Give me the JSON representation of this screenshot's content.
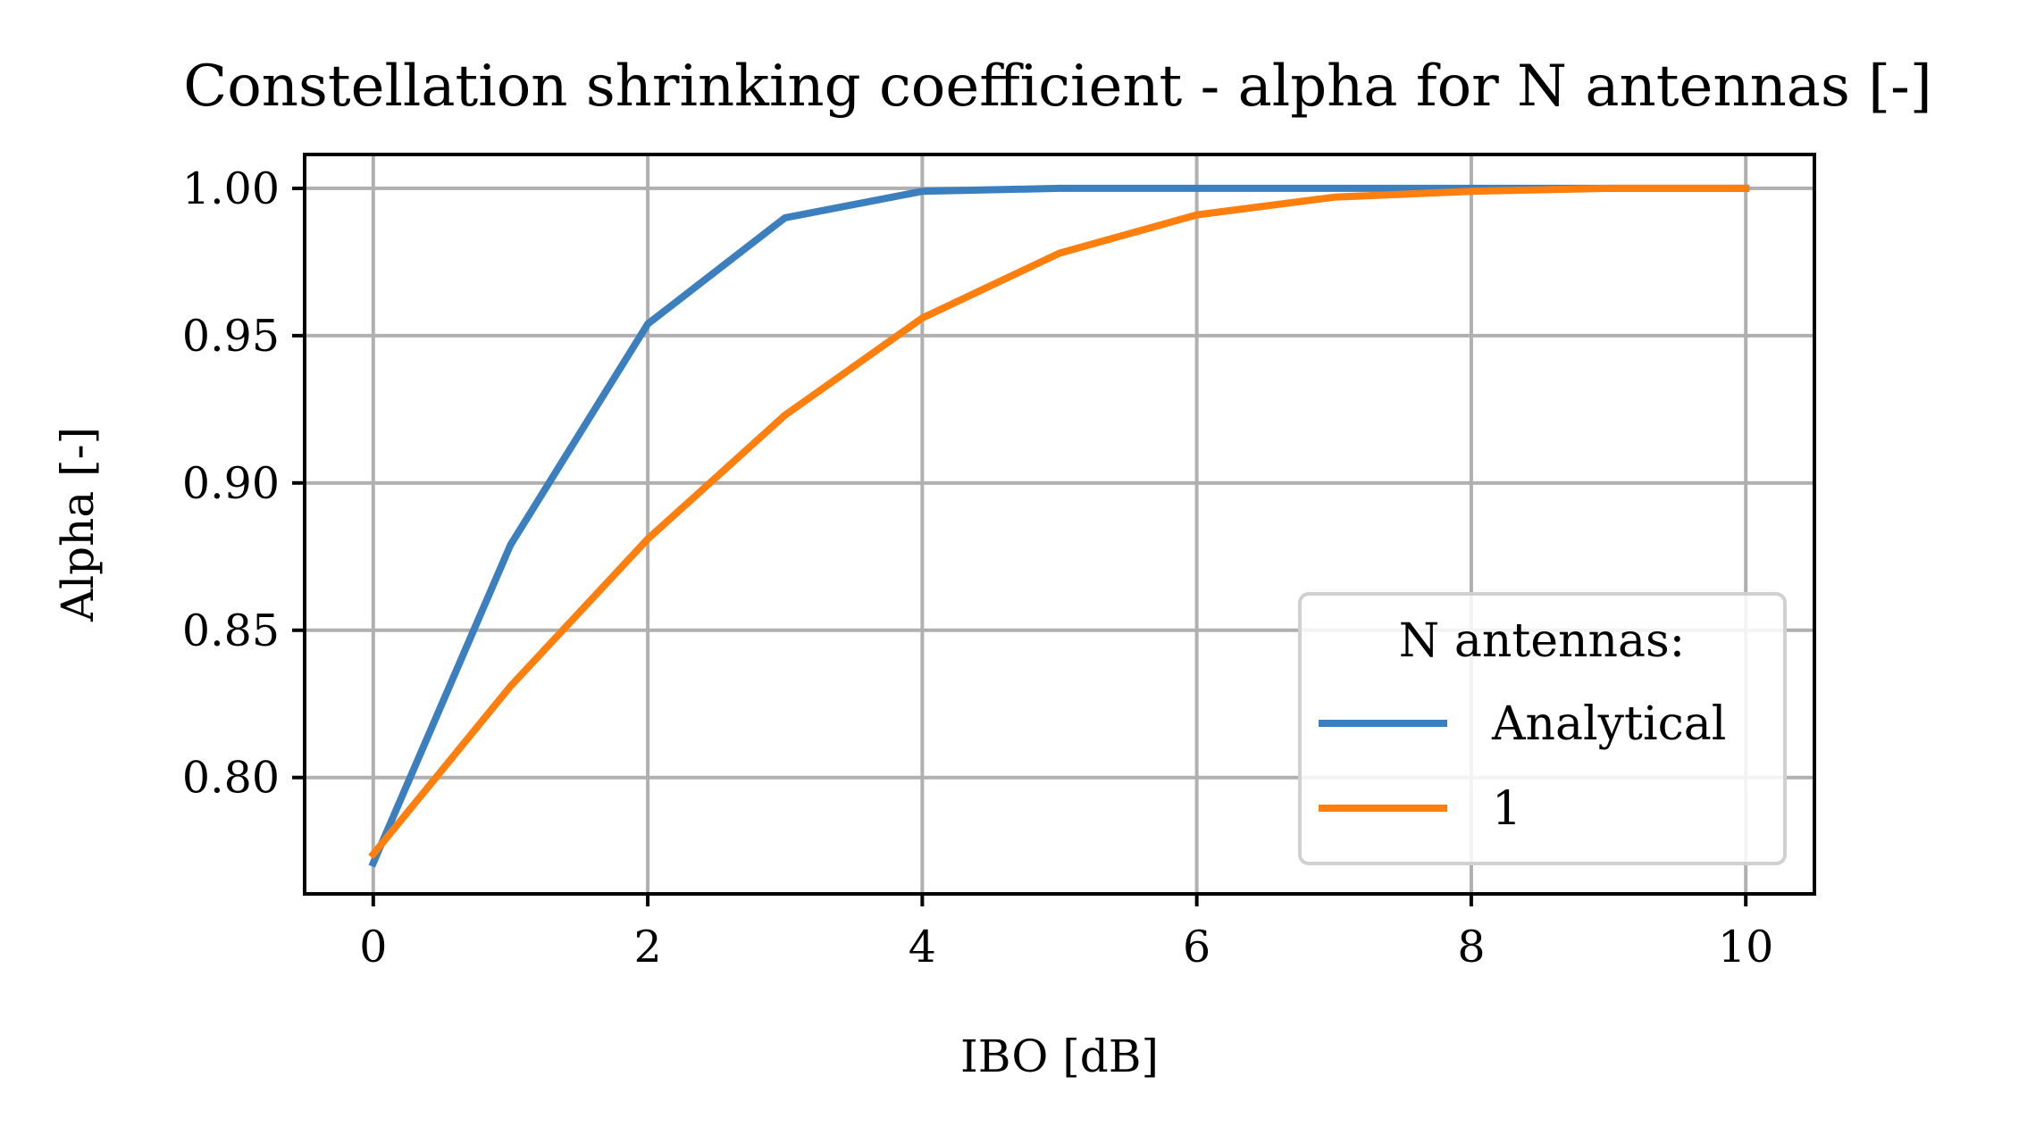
{
  "chart_data": {
    "type": "line",
    "title": "Constellation shrinking coefficient - alpha for N antennas [-]",
    "xlabel": "IBO [dB]",
    "ylabel": "Alpha [-]",
    "xlim": [
      -0.5,
      10.5
    ],
    "ylim": [
      0.7605,
      1.0115
    ],
    "x_ticks": [
      0,
      2,
      4,
      6,
      8,
      10
    ],
    "x_tick_labels": [
      "0",
      "2",
      "4",
      "6",
      "8",
      "10"
    ],
    "y_ticks": [
      0.8,
      0.85,
      0.9,
      0.95,
      1.0
    ],
    "y_tick_labels": [
      "0.80",
      "0.85",
      "0.90",
      "0.95",
      "1.00"
    ],
    "grid": true,
    "legend": {
      "title": "N antennas:",
      "placement": "lower-right"
    },
    "series": [
      {
        "name": "Analytical",
        "color": "#3b7fbf",
        "x": [
          0,
          1,
          2,
          3,
          4,
          5,
          6,
          7,
          8,
          9,
          10
        ],
        "y": [
          0.771,
          0.879,
          0.954,
          0.99,
          0.999,
          1.0,
          1.0,
          1.0,
          1.0,
          1.0,
          1.0
        ]
      },
      {
        "name": "1",
        "color": "#ff7f0e",
        "x": [
          0,
          1,
          2,
          3,
          4,
          5,
          6,
          7,
          8,
          9,
          10
        ],
        "y": [
          0.774,
          0.831,
          0.881,
          0.923,
          0.956,
          0.978,
          0.991,
          0.997,
          0.999,
          1.0,
          1.0
        ]
      }
    ]
  }
}
